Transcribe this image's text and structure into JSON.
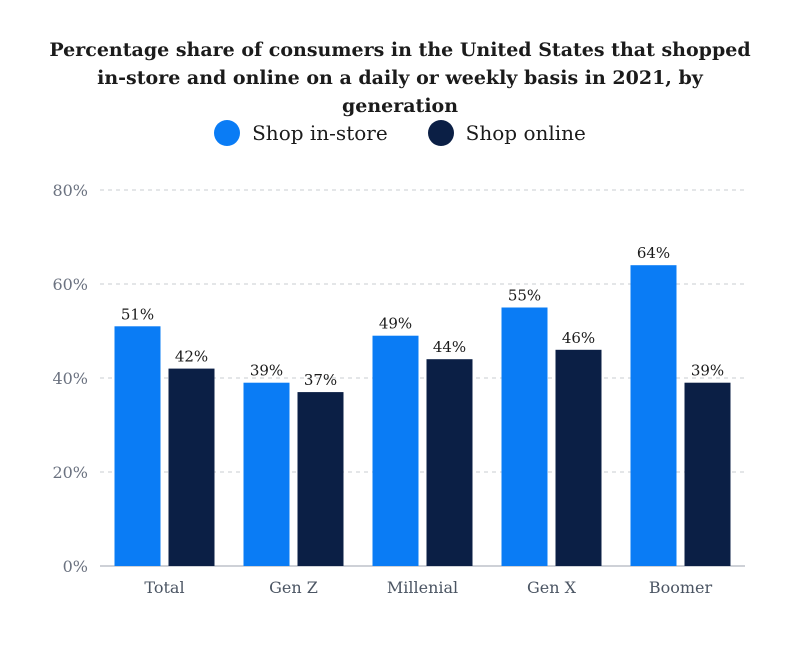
{
  "chart_data": {
    "type": "bar",
    "title": "Percentage share of consumers in the United States that shopped in-store and online on a daily or weekly basis in 2021, by generation",
    "categories": [
      "Total",
      "Gen Z",
      "Millenial",
      "Gen X",
      "Boomer"
    ],
    "series": [
      {
        "name": "Shop in-store",
        "color": "#0a7cf5",
        "values": [
          51,
          39,
          49,
          55,
          64
        ]
      },
      {
        "name": "Shop online",
        "color": "#0b1f45",
        "values": [
          42,
          37,
          44,
          46,
          39
        ]
      }
    ],
    "data_labels": [
      [
        "51%",
        "39%",
        "49%",
        "55%",
        "64%"
      ],
      [
        "42%",
        "37%",
        "44%",
        "46%",
        "39%"
      ]
    ],
    "ylim": [
      0,
      80
    ],
    "yticks": [
      0,
      20,
      40,
      60,
      80
    ],
    "ytick_labels": [
      "0%",
      "20%",
      "40%",
      "60%",
      "80%"
    ],
    "xlabel": "",
    "ylabel": "",
    "grid": true,
    "legend_position": "top-center"
  }
}
